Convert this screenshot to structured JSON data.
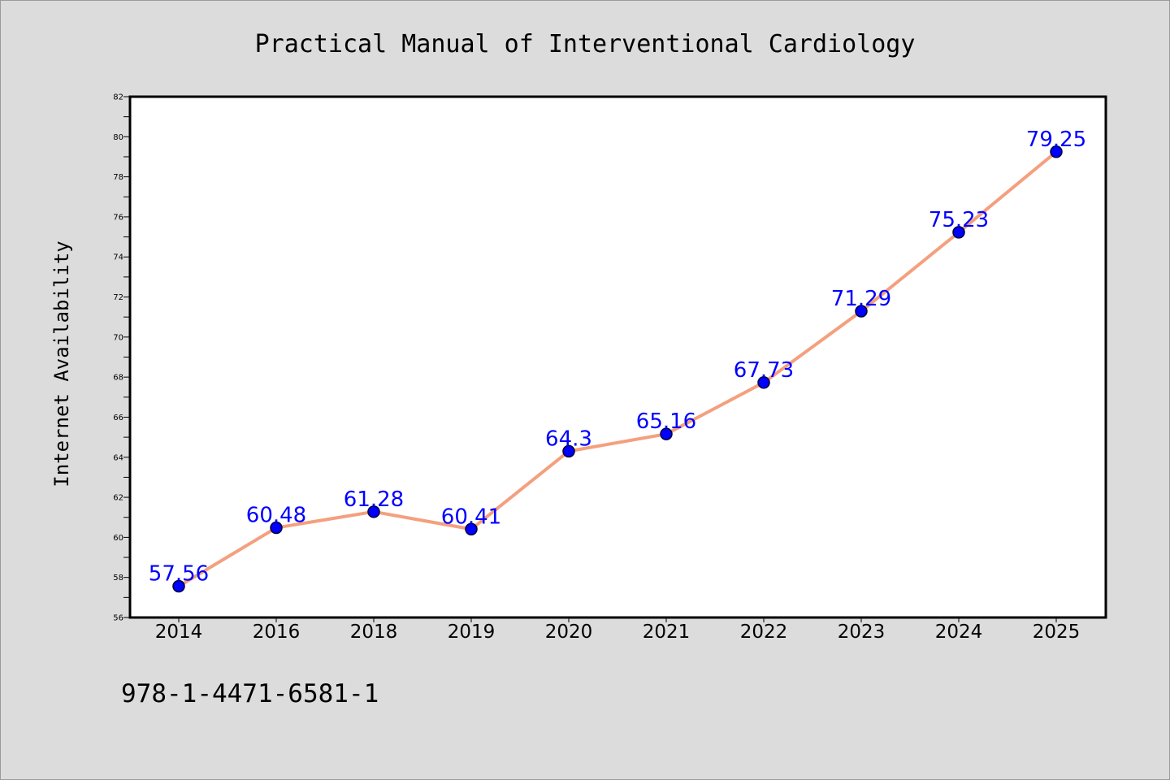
{
  "chart_data": {
    "type": "line",
    "title": "Practical Manual of Interventional Cardiology",
    "xlabel": "",
    "ylabel": "Internet Availability",
    "categories": [
      "2014",
      "2016",
      "2018",
      "2019",
      "2020",
      "2021",
      "2022",
      "2023",
      "2024",
      "2025"
    ],
    "series": [
      {
        "values": [
          57.56,
          60.48,
          61.28,
          60.41,
          64.3,
          65.16,
          67.73,
          71.29,
          75.23,
          79.25
        ],
        "labels": [
          "57.56",
          "60.48",
          "61.28",
          "60.41",
          "64.3",
          "65.16",
          "67.73",
          "71.29",
          "75.23",
          "79.25"
        ]
      }
    ],
    "ylim": [
      56,
      82
    ],
    "yticks": [
      "56",
      "58",
      "60",
      "62",
      "64",
      "66",
      "68",
      "70",
      "72",
      "74",
      "76",
      "78",
      "80",
      "82"
    ],
    "grid": false,
    "legend": "none",
    "colors": {
      "line": "#f4a07e",
      "marker": "#0000ff",
      "marker_edge": "#000033",
      "data_label": "#0000ff",
      "background": "#dcdcdc",
      "plot_background": "#ffffff"
    }
  },
  "footer": {
    "isbn": "978-1-4471-6581-1"
  }
}
